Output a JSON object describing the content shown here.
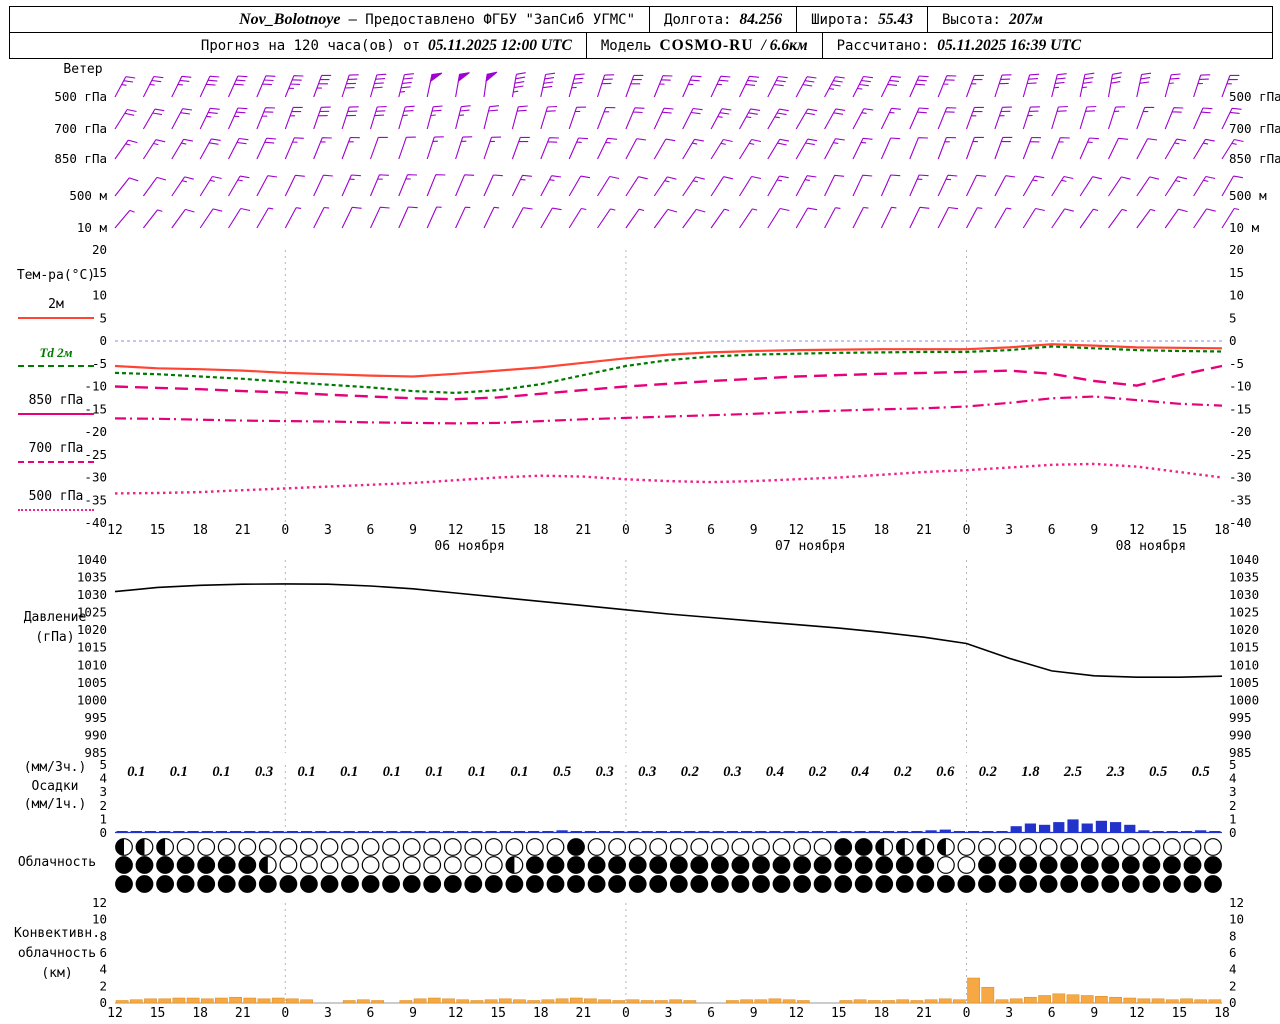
{
  "header": {
    "station": "Nov_Bolotnoye",
    "provider": "— Предоставлено ФГБУ \"ЗапСиб УГМС\"",
    "lon_label": "Долгота:",
    "lon": "84.256",
    "lat_label": "Широта:",
    "lat": "55.43",
    "alt_label": "Высота:",
    "alt": "207м",
    "forecast_label": "Прогноз на 120 часа(ов) от",
    "forecast_time": "05.11.2025 12:00 UTC",
    "model_label": "Модель",
    "model_name": "COSMO-RU",
    "model_res": "/ 6.6км",
    "calc_label": "Рассчитано:",
    "calc_time": "05.11.2025 16:39 UTC"
  },
  "chart_data": {
    "type": "meteogram",
    "hours_span": 78,
    "x_ticks": [
      "12",
      "15",
      "18",
      "21",
      "0",
      "3",
      "6",
      "9",
      "12",
      "15",
      "18",
      "21",
      "0",
      "3",
      "6",
      "9",
      "12",
      "15",
      "18",
      "21",
      "0",
      "3",
      "6",
      "9",
      "12",
      "15",
      "18"
    ],
    "dates": [
      {
        "label": "06 ноября",
        "tick": 8
      },
      {
        "label": "07 ноября",
        "tick": 16
      },
      {
        "label": "08 ноября",
        "tick": 24
      }
    ],
    "wind": {
      "label": "Ветер",
      "color": "#a000d0",
      "levels": [
        {
          "name": "500 гПа",
          "angles": [
            62,
            63,
            64,
            65,
            66,
            67,
            68,
            70,
            72,
            74,
            76,
            78,
            80,
            82,
            80,
            78,
            75,
            72,
            70,
            68,
            66,
            65,
            64,
            63,
            62,
            62,
            63,
            64,
            66,
            68,
            70,
            72,
            74,
            76,
            78,
            80,
            78,
            75,
            72,
            70
          ],
          "speeds": [
            25,
            25,
            25,
            30,
            30,
            30,
            35,
            35,
            40,
            40,
            45,
            50,
            50,
            50,
            45,
            40,
            35,
            30,
            30,
            25,
            25,
            25,
            30,
            30,
            30,
            35,
            35,
            30,
            30,
            25,
            25,
            30,
            30,
            35,
            35,
            30,
            30,
            25,
            25,
            25
          ]
        },
        {
          "name": "700 гПа",
          "angles": [
            58,
            60,
            62,
            64,
            66,
            68,
            70,
            71,
            72,
            73,
            74,
            75,
            76,
            76,
            75,
            73,
            71,
            69,
            67,
            65,
            63,
            62,
            61,
            60,
            60,
            61,
            62,
            64,
            66,
            68,
            70,
            71,
            72,
            73,
            73,
            72,
            70,
            68,
            66,
            64
          ],
          "speeds": [
            20,
            20,
            20,
            25,
            25,
            25,
            25,
            30,
            30,
            30,
            25,
            25,
            25,
            20,
            20,
            20,
            15,
            15,
            20,
            20,
            20,
            25,
            25,
            25,
            20,
            20,
            15,
            15,
            20,
            20,
            25,
            25,
            25,
            20,
            20,
            15,
            15,
            20,
            20,
            20
          ]
        },
        {
          "name": "850 гПа",
          "angles": [
            55,
            57,
            59,
            61,
            63,
            65,
            67,
            68,
            69,
            70,
            71,
            72,
            72,
            71,
            70,
            68,
            66,
            64,
            62,
            60,
            59,
            58,
            58,
            59,
            60,
            62,
            64,
            66,
            68,
            69,
            70,
            70,
            69,
            68,
            66,
            64,
            62,
            60,
            59,
            58
          ],
          "speeds": [
            15,
            15,
            15,
            20,
            20,
            20,
            15,
            15,
            15,
            10,
            10,
            15,
            15,
            15,
            20,
            20,
            15,
            15,
            10,
            10,
            15,
            15,
            15,
            20,
            20,
            15,
            15,
            10,
            10,
            15,
            15,
            20,
            20,
            15,
            15,
            10,
            10,
            15,
            15,
            15
          ]
        },
        {
          "name": "500 м",
          "angles": [
            52,
            54,
            56,
            58,
            60,
            62,
            64,
            65,
            66,
            67,
            68,
            68,
            67,
            66,
            64,
            62,
            60,
            58,
            57,
            56,
            56,
            57,
            58,
            60,
            62,
            64,
            65,
            66,
            66,
            65,
            64,
            62,
            60,
            58,
            57,
            56,
            56,
            57,
            58,
            60
          ],
          "speeds": [
            10,
            10,
            15,
            15,
            15,
            10,
            10,
            10,
            15,
            15,
            15,
            10,
            10,
            10,
            15,
            15,
            10,
            10,
            10,
            15,
            15,
            10,
            10,
            15,
            15,
            10,
            10,
            10,
            15,
            15,
            10,
            10,
            15,
            15,
            10,
            10,
            10,
            15,
            15,
            10
          ]
        },
        {
          "name": "10 м",
          "angles": [
            50,
            52,
            54,
            56,
            58,
            60,
            62,
            63,
            64,
            65,
            66,
            66,
            65,
            64,
            62,
            60,
            58,
            56,
            55,
            54,
            54,
            55,
            56,
            58,
            60,
            62,
            63,
            64,
            64,
            63,
            62,
            60,
            58,
            56,
            55,
            54,
            54,
            55,
            56,
            58
          ],
          "speeds": [
            5,
            5,
            10,
            10,
            10,
            5,
            5,
            5,
            10,
            10,
            10,
            5,
            5,
            5,
            10,
            10,
            5,
            5,
            5,
            10,
            10,
            5,
            5,
            10,
            10,
            5,
            5,
            5,
            10,
            10,
            5,
            5,
            10,
            10,
            5,
            5,
            5,
            10,
            10,
            5
          ]
        }
      ]
    },
    "temperature": {
      "title": "Тем-ра(°C)",
      "ylim": [
        -40,
        20
      ],
      "yticks": [
        20,
        15,
        10,
        5,
        0,
        -5,
        -10,
        -15,
        -20,
        -25,
        -30,
        -35,
        -40
      ],
      "series": [
        {
          "name": "2м",
          "color": "#ff4433",
          "dash": "solid",
          "width": 2.2,
          "values": [
            -5.5,
            -6,
            -6.2,
            -6.5,
            -7,
            -7.3,
            -7.6,
            -7.8,
            -7.2,
            -6.5,
            -5.8,
            -4.8,
            -3.8,
            -3,
            -2.5,
            -2.2,
            -2,
            -1.9,
            -1.8,
            -1.8,
            -1.8,
            -1.4,
            -0.7,
            -1,
            -1.4,
            -1.5,
            -1.6
          ]
        },
        {
          "name": "Td 2м",
          "color": "#007a00",
          "dash": "dash",
          "width": 2.2,
          "values": [
            -7,
            -7.3,
            -7.8,
            -8.3,
            -9,
            -9.6,
            -10.2,
            -11,
            -11.4,
            -10.8,
            -9.5,
            -7.5,
            -5.5,
            -4.2,
            -3.4,
            -3,
            -2.8,
            -2.6,
            -2.5,
            -2.4,
            -2.4,
            -2,
            -1.2,
            -1.6,
            -2,
            -2.2,
            -2.3
          ]
        },
        {
          "name": "850 гПа",
          "color": "#e6007a",
          "dash": "longdash",
          "width": 2.4,
          "values": [
            -10,
            -10.3,
            -10.6,
            -11,
            -11.3,
            -11.8,
            -12.2,
            -12.6,
            -12.8,
            -12.4,
            -11.6,
            -10.8,
            -10,
            -9.4,
            -8.8,
            -8.3,
            -7.8,
            -7.5,
            -7.2,
            -7,
            -6.8,
            -6.5,
            -7.2,
            -8.8,
            -9.8,
            -7.5,
            -5.5
          ]
        },
        {
          "name": "700 гПа",
          "color": "#e6007a",
          "dash": "dashdot",
          "width": 2.2,
          "values": [
            -17,
            -17.1,
            -17.3,
            -17.5,
            -17.6,
            -17.7,
            -17.9,
            -18,
            -18.1,
            -18,
            -17.6,
            -17.2,
            -16.9,
            -16.6,
            -16.3,
            -16,
            -15.6,
            -15.3,
            -15,
            -14.8,
            -14.4,
            -13.6,
            -12.6,
            -12.2,
            -13,
            -13.8,
            -14.2
          ]
        },
        {
          "name": "500 гПа",
          "color": "#ee2288",
          "dash": "dot",
          "width": 2.4,
          "values": [
            -33.5,
            -33.4,
            -33.2,
            -32.8,
            -32.4,
            -32,
            -31.6,
            -31.2,
            -30.6,
            -30,
            -29.6,
            -29.8,
            -30.4,
            -30.8,
            -31,
            -30.8,
            -30.4,
            -30,
            -29.4,
            -28.8,
            -28.4,
            -27.8,
            -27.2,
            -27,
            -27.6,
            -28.8,
            -30
          ]
        }
      ]
    },
    "pressure": {
      "label": "Давление",
      "unit": "(гПа)",
      "ylim": [
        985,
        1040
      ],
      "yticks": [
        1040,
        1035,
        1030,
        1025,
        1020,
        1015,
        1010,
        1005,
        1000,
        995,
        990,
        985
      ],
      "color": "#000000",
      "values": [
        1031,
        1032.2,
        1032.8,
        1033.1,
        1033.2,
        1033.1,
        1032.6,
        1031.8,
        1030.6,
        1029.4,
        1028.2,
        1027,
        1025.8,
        1024.6,
        1023.6,
        1022.6,
        1021.6,
        1020.6,
        1019.4,
        1018,
        1016.2,
        1012,
        1008.4,
        1007,
        1006.6,
        1006.6,
        1006.9
      ]
    },
    "precipitation": {
      "label_3h": "(мм/3ч.)",
      "label_main": "Осадки",
      "label_1h": "(мм/1ч.)",
      "ylim": [
        0,
        5
      ],
      "yticks": [
        5,
        4,
        3,
        2,
        1,
        0
      ],
      "bar_color": "#2233cc",
      "amounts_3h": [
        "0.1",
        "0.1",
        "0.1",
        "0.3",
        "0.1",
        "0.1",
        "0.1",
        "0.1",
        "0.1",
        "0.1",
        "0.5",
        "0.3",
        "0.3",
        "0.2",
        "0.3",
        "0.4",
        "0.2",
        "0.4",
        "0.2",
        "0.6",
        "0.2",
        "1.8",
        "2.5",
        "2.3",
        "0.5",
        "0.5"
      ],
      "hourly": [
        0.04,
        0.03,
        0.03,
        0.03,
        0.04,
        0.03,
        0.03,
        0.03,
        0.04,
        0.1,
        0.12,
        0.08,
        0.04,
        0.03,
        0.03,
        0.03,
        0.03,
        0.04,
        0.04,
        0.03,
        0.03,
        0.03,
        0.04,
        0.03,
        0.03,
        0.03,
        0.04,
        0.04,
        0.03,
        0.03,
        0.15,
        0.2,
        0.15,
        0.1,
        0.1,
        0.1,
        0.1,
        0.12,
        0.08,
        0.07,
        0.07,
        0.06,
        0.1,
        0.1,
        0.1,
        0.15,
        0.15,
        0.1,
        0.07,
        0.06,
        0.07,
        0.13,
        0.14,
        0.13,
        0.07,
        0.07,
        0.06,
        0.2,
        0.25,
        0.15,
        0.07,
        0.06,
        0.07,
        0.5,
        0.7,
        0.6,
        0.8,
        1.0,
        0.7,
        0.9,
        0.8,
        0.6,
        0.2,
        0.15,
        0.15,
        0.15,
        0.2,
        0.15
      ]
    },
    "cloudiness": {
      "label": "Облачность",
      "rows": [
        [
          1,
          1,
          1,
          0,
          0,
          0,
          0,
          0,
          0,
          0,
          0,
          0,
          0,
          0,
          0,
          0,
          0,
          0,
          0,
          0,
          0,
          0,
          3,
          0,
          0,
          0,
          0,
          0,
          0,
          0,
          0,
          0,
          0,
          0,
          0,
          3,
          3,
          1,
          1,
          1,
          1,
          0,
          0,
          0,
          0,
          0,
          0,
          0,
          0,
          0,
          0,
          0,
          0,
          0
        ],
        [
          3,
          3,
          3,
          3,
          3,
          3,
          3,
          1,
          0,
          0,
          0,
          0,
          0,
          0,
          0,
          0,
          0,
          0,
          0,
          1,
          3,
          3,
          3,
          3,
          3,
          3,
          3,
          3,
          3,
          3,
          3,
          3,
          3,
          3,
          3,
          3,
          3,
          3,
          3,
          3,
          0,
          0,
          3,
          3,
          3,
          3,
          3,
          3,
          3,
          3,
          3,
          3,
          3,
          3
        ],
        [
          3,
          3,
          3,
          3,
          3,
          3,
          3,
          3,
          3,
          3,
          3,
          3,
          3,
          3,
          3,
          3,
          3,
          3,
          3,
          3,
          3,
          3,
          3,
          3,
          3,
          3,
          3,
          3,
          3,
          3,
          3,
          3,
          3,
          3,
          3,
          3,
          3,
          3,
          3,
          3,
          3,
          3,
          3,
          3,
          3,
          3,
          3,
          3,
          3,
          3,
          3,
          3,
          3,
          3
        ]
      ]
    },
    "convective": {
      "labels": [
        "Конвективн.",
        "облачность",
        "(км)"
      ],
      "ylim": [
        0,
        12
      ],
      "yticks": [
        12,
        10,
        8,
        6,
        4,
        2,
        0
      ],
      "color": "#f5a843",
      "values": [
        0.2,
        0.4,
        0.5,
        0.5,
        0.6,
        0.6,
        0.5,
        0.6,
        0.7,
        0.6,
        0.5,
        0.6,
        0.5,
        0.4,
        0,
        0,
        0.3,
        0.4,
        0.3,
        0,
        0.3,
        0.5,
        0.6,
        0.5,
        0.4,
        0.3,
        0.4,
        0.5,
        0.4,
        0.3,
        0.4,
        0.5,
        0.6,
        0.5,
        0.4,
        0.3,
        0.4,
        0.3,
        0.3,
        0.4,
        0.3,
        0,
        0,
        0.3,
        0.4,
        0.4,
        0.5,
        0.4,
        0.3,
        0,
        0,
        0.3,
        0.4,
        0.3,
        0.3,
        0.4,
        0.3,
        0.4,
        0.5,
        0.4,
        3.0,
        1.9,
        0.4,
        0.5,
        0.7,
        0.9,
        1.1,
        1.0,
        0.9,
        0.8,
        0.7,
        0.6,
        0.5,
        0.5,
        0.4,
        0.5,
        0.4,
        0.4
      ]
    }
  }
}
